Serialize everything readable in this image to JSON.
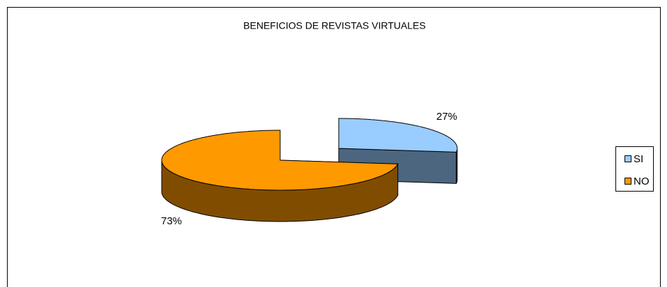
{
  "chart_data": {
    "type": "pie",
    "title": "BENEFICIOS DE REVISTAS VIRTUALES",
    "categories": [
      "SI",
      "NO"
    ],
    "values": [
      27,
      73
    ],
    "value_labels": [
      "27%",
      "73%"
    ],
    "colors": [
      "#99ccff",
      "#ff9900"
    ],
    "legend": "right"
  }
}
